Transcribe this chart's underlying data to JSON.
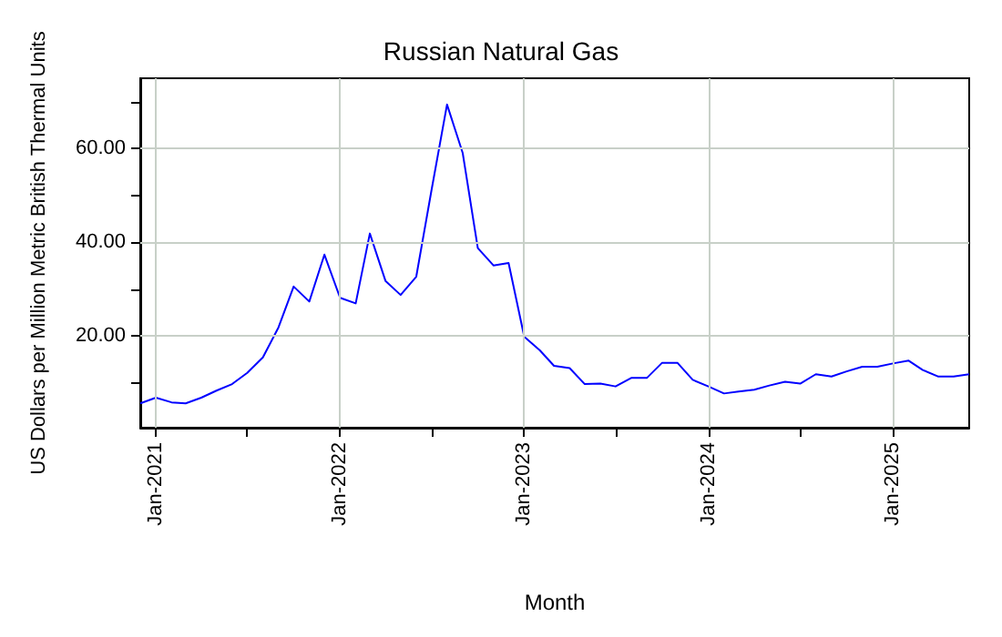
{
  "chart_data": {
    "type": "line",
    "title": "Russian Natural Gas",
    "xlabel": "Month",
    "ylabel": "US Dollars per Million Metric British Thermal Units",
    "x": [
      "2020-12",
      "2021-01",
      "2021-02",
      "2021-03",
      "2021-04",
      "2021-05",
      "2021-06",
      "2021-07",
      "2021-08",
      "2021-09",
      "2021-10",
      "2021-11",
      "2021-12",
      "2022-01",
      "2022-02",
      "2022-03",
      "2022-04",
      "2022-05",
      "2022-06",
      "2022-07",
      "2022-08",
      "2022-09",
      "2022-10",
      "2022-11",
      "2022-12",
      "2023-01",
      "2023-02",
      "2023-03",
      "2023-04",
      "2023-05",
      "2023-06",
      "2023-07",
      "2023-08",
      "2023-09",
      "2023-10",
      "2023-11",
      "2023-12",
      "2024-01",
      "2024-02",
      "2024-03",
      "2024-04",
      "2024-05",
      "2024-06",
      "2024-07",
      "2024-08",
      "2024-09",
      "2024-10",
      "2024-11",
      "2024-12",
      "2025-01",
      "2025-02",
      "2025-03",
      "2025-04",
      "2025-05",
      "2025-06"
    ],
    "series": [
      {
        "color": "#0000ff",
        "values": [
          5.7,
          6.9,
          5.9,
          5.7,
          6.9,
          8.4,
          9.8,
          12.2,
          15.5,
          21.9,
          30.6,
          27.4,
          37.4,
          28.2,
          27.0,
          41.9,
          31.8,
          28.8,
          32.7,
          51.0,
          69.4,
          59.1,
          38.8,
          35.1,
          35.6,
          19.9,
          17.0,
          13.7,
          13.2,
          9.8,
          9.9,
          9.3,
          11.1,
          11.1,
          14.3,
          14.3,
          10.7,
          9.3,
          7.8,
          8.2,
          8.6,
          9.5,
          10.3,
          9.9,
          11.9,
          11.4,
          12.5,
          13.5,
          13.5,
          14.2,
          14.8,
          12.8,
          11.4,
          11.4,
          11.9
        ]
      }
    ],
    "xlim": [
      "2020-12",
      "2025-06"
    ],
    "xticks": [
      {
        "value": "2021-01",
        "label": "Jan-2021"
      },
      {
        "value": "2021-07",
        "label": null
      },
      {
        "value": "2022-01",
        "label": "Jan-2022"
      },
      {
        "value": "2022-07",
        "label": null
      },
      {
        "value": "2023-01",
        "label": "Jan-2023"
      },
      {
        "value": "2023-07",
        "label": null
      },
      {
        "value": "2024-01",
        "label": "Jan-2024"
      },
      {
        "value": "2024-07",
        "label": null
      },
      {
        "value": "2025-01",
        "label": "Jan-2025"
      }
    ],
    "ylim": [
      0.5,
      75
    ],
    "yticks": [
      {
        "value": 10,
        "label": null
      },
      {
        "value": 20,
        "label": "20.00"
      },
      {
        "value": 30,
        "label": null
      },
      {
        "value": 40,
        "label": "40.00"
      },
      {
        "value": 50,
        "label": null
      },
      {
        "value": 60,
        "label": "60.00"
      },
      {
        "value": 70,
        "label": null
      }
    ],
    "grid": true,
    "marker": "none",
    "line_style": "solid"
  }
}
